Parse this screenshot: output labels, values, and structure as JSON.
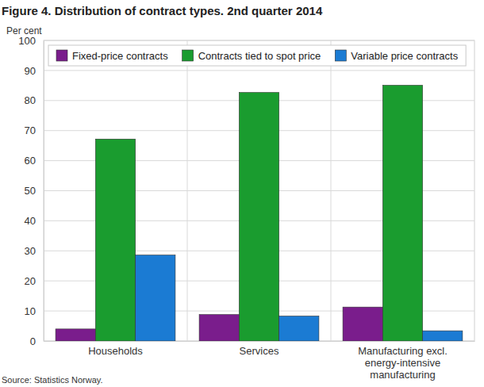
{
  "chart_data": {
    "type": "bar",
    "title": "Figure 4. Distribution of contract types. 2nd quarter 2014",
    "y_label": "Per cent",
    "source": "Source: Statistics Norway.",
    "categories": [
      "Households",
      "Services",
      "Manufacturing excl. energy-intensive manufacturing"
    ],
    "series": [
      {
        "name": "Fixed-price contracts",
        "color": "#7a1d8c",
        "values": [
          4.0,
          8.8,
          11.3
        ]
      },
      {
        "name": "Contracts tied to spot price",
        "color": "#1a9c2f",
        "values": [
          67.2,
          82.7,
          85.1
        ]
      },
      {
        "name": "Variable price contracts",
        "color": "#1b7bd3",
        "values": [
          28.6,
          8.3,
          3.4
        ]
      }
    ],
    "ylim": [
      0,
      100
    ],
    "yticks": [
      0,
      10,
      20,
      30,
      40,
      50,
      60,
      70,
      80,
      90,
      100
    ],
    "grid": true,
    "legend": "top"
  }
}
